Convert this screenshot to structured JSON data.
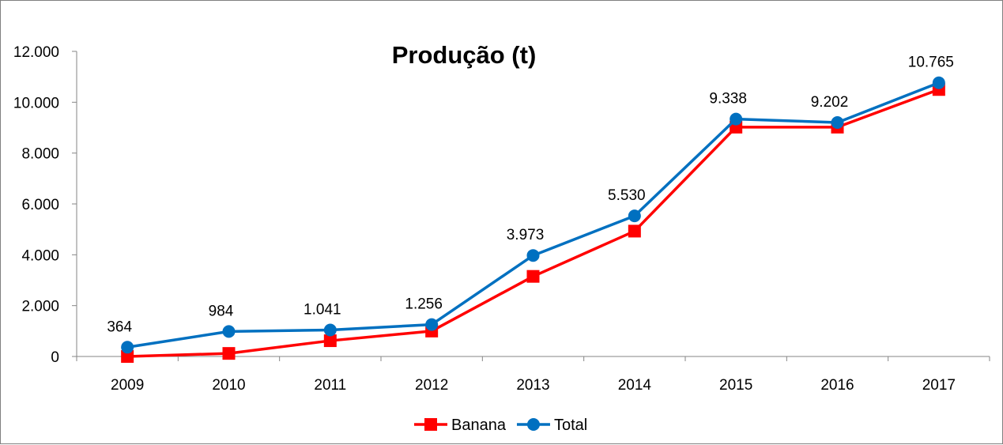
{
  "chart_data": {
    "type": "line",
    "title": "Produção (t)",
    "xlabel": "",
    "ylabel": "",
    "categories": [
      "2009",
      "2010",
      "2011",
      "2012",
      "2013",
      "2014",
      "2015",
      "2016",
      "2017"
    ],
    "ylim": [
      0,
      12000
    ],
    "yticks": [
      0,
      2000,
      4000,
      6000,
      8000,
      10000,
      12000
    ],
    "ytick_labels": [
      "0",
      "2.000",
      "4.000",
      "6.000",
      "8.000",
      "10.000",
      "12.000"
    ],
    "grid": false,
    "legend_position": "bottom",
    "series": [
      {
        "name": "Banana",
        "color": "#ff0000",
        "marker": "square",
        "values": [
          0,
          120,
          620,
          1000,
          3150,
          4930,
          9020,
          9020,
          10500
        ]
      },
      {
        "name": "Total",
        "color": "#0070c0",
        "marker": "circle",
        "values": [
          364,
          984,
          1041,
          1256,
          3973,
          5530,
          9338,
          9202,
          10765
        ],
        "data_labels": [
          "364",
          "984",
          "1.041",
          "1.256",
          "3.973",
          "5.530",
          "9.338",
          "9.202",
          "10.765"
        ]
      }
    ]
  }
}
